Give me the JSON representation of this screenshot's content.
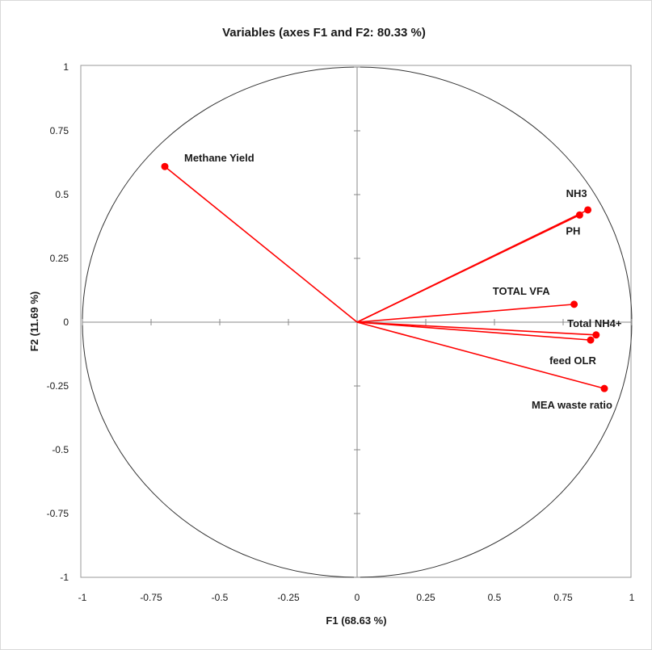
{
  "chart_data": {
    "type": "scatter",
    "title": "Variables (axes F1 and F2: 80.33 %)",
    "xlabel": "F1 (68.63 %)",
    "ylabel": "F2 (11.69 %)",
    "xlim": [
      -1,
      1
    ],
    "ylim": [
      -1,
      1
    ],
    "xticks": [
      "-1",
      "-0.75",
      "-0.5",
      "-0.25",
      "0",
      "0.25",
      "0.5",
      "0.75",
      "1"
    ],
    "yticks": [
      "1",
      "0.75",
      "0.5",
      "0.25",
      "0",
      "-0.25",
      "-0.5",
      "-0.75",
      "-1"
    ],
    "grid": false,
    "unit_circle": true,
    "vector_color": "#ff0000",
    "circle_color": "#333333",
    "points": [
      {
        "label": "Methane Yield",
        "x": -0.7,
        "y": 0.61
      },
      {
        "label": "NH3",
        "x": 0.84,
        "y": 0.44
      },
      {
        "label": "PH",
        "x": 0.81,
        "y": 0.42
      },
      {
        "label": "TOTAL VFA",
        "x": 0.79,
        "y": 0.07
      },
      {
        "label": "Total NH4+",
        "x": 0.87,
        "y": -0.05
      },
      {
        "label": "feed OLR",
        "x": 0.85,
        "y": -0.07
      },
      {
        "label": "MEA waste ratio",
        "x": 0.9,
        "y": -0.26
      }
    ]
  }
}
